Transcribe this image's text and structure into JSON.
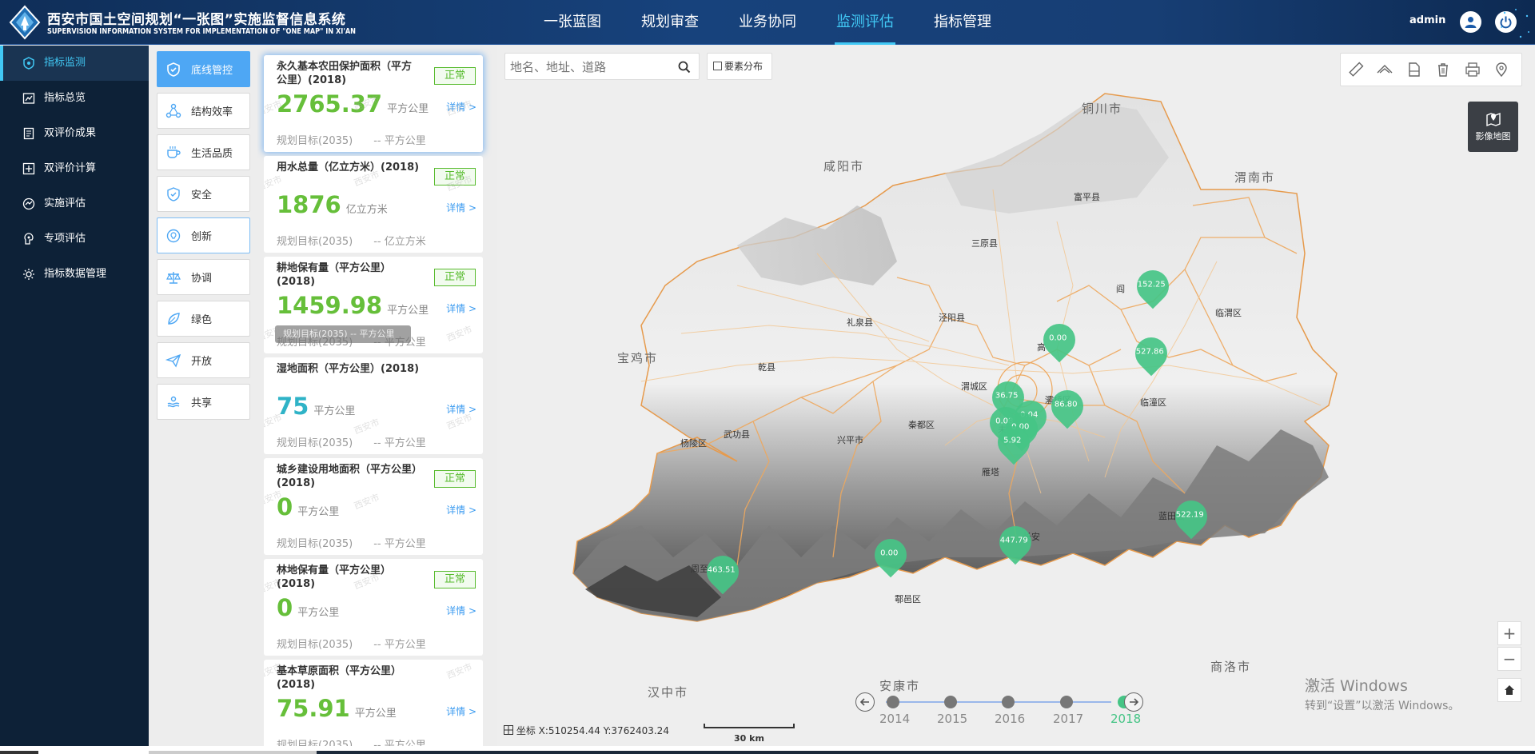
{
  "header": {
    "title_cn": "西安市国土空间规划“一张图”实施监督信息系统",
    "title_en": "SUPERVISION INFORMATION SYSTEM FOR IMPLEMENTATION OF \"ONE MAP\" IN XI'AN",
    "nav": [
      "一张蓝图",
      "规划审查",
      "业务协同",
      "监测评估",
      "指标管理"
    ],
    "active_nav": "监测评估",
    "user": "admin"
  },
  "sidebar": {
    "items": [
      {
        "label": "指标监测",
        "icon": "indicator-monitor-icon"
      },
      {
        "label": "指标总览",
        "icon": "overview-icon"
      },
      {
        "label": "双评价成果",
        "icon": "document-icon"
      },
      {
        "label": "双评价计算",
        "icon": "calculate-icon"
      },
      {
        "label": "实施评估",
        "icon": "assessment-icon"
      },
      {
        "label": "专项评估",
        "icon": "special-assessment-icon"
      },
      {
        "label": "指标数据管理",
        "icon": "data-management-icon"
      }
    ],
    "active": "指标监测"
  },
  "categories": {
    "items": [
      {
        "label": "底线管控",
        "icon": "shield-icon"
      },
      {
        "label": "结构效率",
        "icon": "structure-icon"
      },
      {
        "label": "生活品质",
        "icon": "cup-icon"
      },
      {
        "label": "安全",
        "icon": "safety-icon"
      },
      {
        "label": "创新",
        "icon": "innovation-icon"
      },
      {
        "label": "协调",
        "icon": "balance-icon"
      },
      {
        "label": "绿色",
        "icon": "leaf-icon"
      },
      {
        "label": "开放",
        "icon": "paper-plane-icon"
      },
      {
        "label": "共享",
        "icon": "share-icon"
      }
    ],
    "active": "底线管控"
  },
  "cards": [
    {
      "title": "永久基本农田保护面积（平方公里）(2018)",
      "status": "正常",
      "value": "2765.37",
      "unit": "平方公里",
      "detail": "详情 >",
      "target_label": "规划目标(2035)",
      "target_value": "-- 平方公里"
    },
    {
      "title": "用水总量（亿立方米）(2018)",
      "status": "正常",
      "value": "1876",
      "unit": "亿立方米",
      "detail": "详情 >",
      "target_label": "规划目标(2035)",
      "target_value": "-- 亿立方米"
    },
    {
      "title": "耕地保有量（平方公里）(2018)",
      "status": "正常",
      "value": "1459.98",
      "unit": "平方公里",
      "detail": "详情 >",
      "target_label": "规划目标(2035)",
      "target_value": "-- 平方公里",
      "tooltip": "规划目标(2035) -- 平方公里"
    },
    {
      "title": "湿地面积（平方公里）(2018)",
      "status": "",
      "value": "75",
      "unit": "平方公里",
      "detail": "详情 >",
      "target_label": "规划目标(2035)",
      "target_value": "-- 平方公里"
    },
    {
      "title": "城乡建设用地面积（平方公里）(2018)",
      "status": "正常",
      "value": "0",
      "unit": "平方公里",
      "detail": "详情 >",
      "target_label": "规划目标(2035)",
      "target_value": "-- 平方公里"
    },
    {
      "title": "林地保有量（平方公里）(2018)",
      "status": "正常",
      "value": "0",
      "unit": "平方公里",
      "detail": "详情 >",
      "target_label": "规划目标(2035)",
      "target_value": "-- 平方公里"
    },
    {
      "title": "基本草原面积（平方公里）(2018)",
      "status": "",
      "value": "75.91",
      "unit": "平方公里",
      "detail": "详情 >",
      "target_label": "规划目标(2035)",
      "target_value": "-- 平方公里"
    }
  ],
  "watermark": "西安市",
  "map": {
    "search_placeholder": "地名、地址、道路",
    "element_toggle": "要素分布",
    "image_map_label": "影像地图",
    "tools": [
      "ruler-icon",
      "area-measure-icon",
      "export-icon",
      "trash-icon",
      "print-icon",
      "location-pin-icon"
    ],
    "cities": [
      "铜川市",
      "咸阳市",
      "渭南市",
      "宝鸡市",
      "汉中市",
      "安康市",
      "商洛市"
    ],
    "districts": [
      "富平县",
      "三原县",
      "礼泉县",
      "泾阳县",
      "临渭区",
      "乾县",
      "高",
      "渭城区",
      "灞桥区",
      "临潼区",
      "秦都区",
      "武功县",
      "杨陵区",
      "兴平市",
      "未央",
      "雁塔",
      "周至县",
      "鄠邑区",
      "长安",
      "蓝田县",
      "阎"
    ],
    "markers": [
      "152.25",
      "0.00",
      "527.86",
      "36.75",
      "86.80",
      "0.08",
      "0.04",
      "0.00",
      "5.92",
      "522.19",
      "447.79",
      "0.00",
      "463.51"
    ],
    "timeline": {
      "years": [
        "2014",
        "2015",
        "2016",
        "2017",
        "2018"
      ],
      "active": "2018"
    },
    "coord_label": "坐标",
    "coords": "X:510254.44 Y:3762403.24",
    "scale": "30 km",
    "activation_line1": "激活 Windows",
    "activation_line2": "转到“设置”以激活 Windows。",
    "ime_label": "中",
    "ime_punct": "°,"
  },
  "colors": {
    "accent": "#41c8f5",
    "header_bg": "#17427c",
    "sidebar_bg": "#0d2137",
    "active_category": "#4ea7f4",
    "value_green": "#66bf3a",
    "value_teal": "#2fb3c7",
    "status_green": "#57bb2d",
    "marker_green": "#45c485",
    "boundary_orange": "#eea85e"
  }
}
